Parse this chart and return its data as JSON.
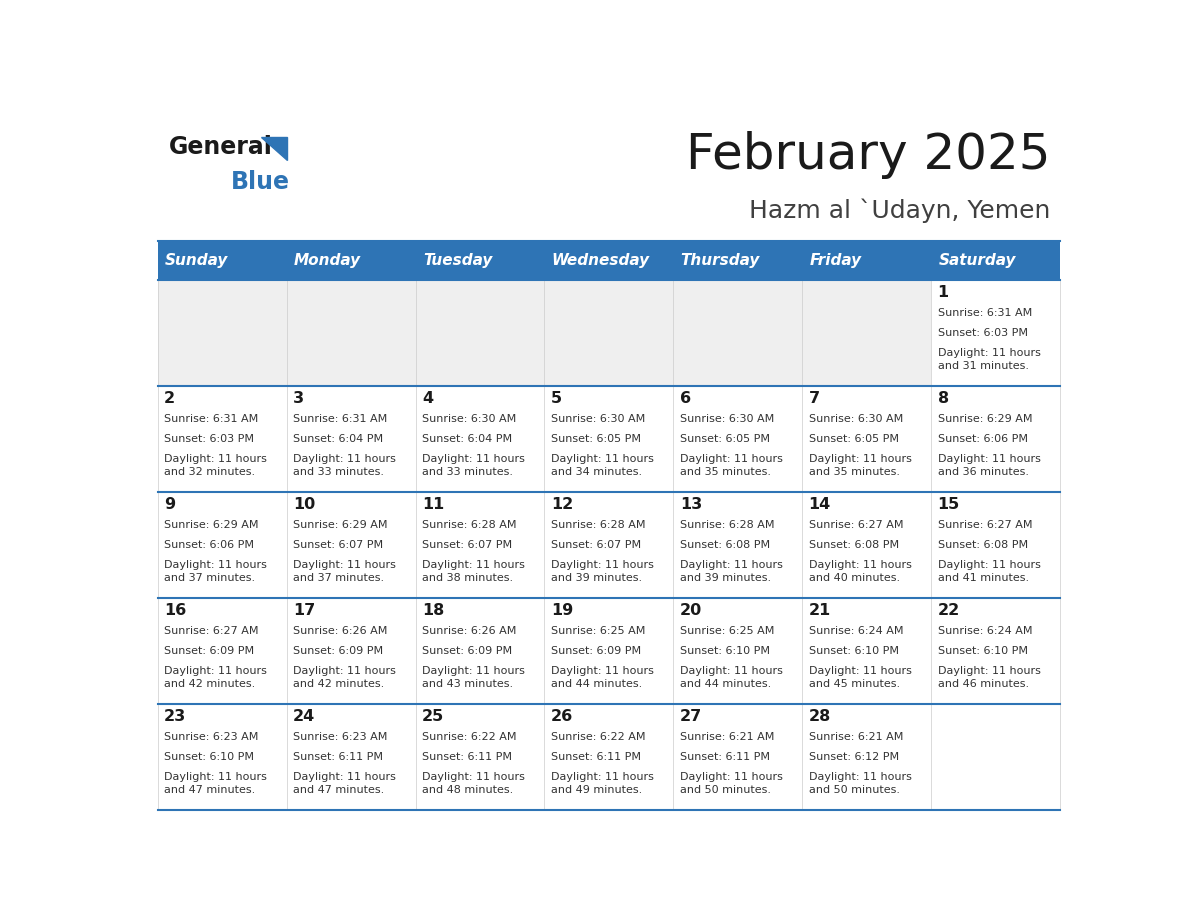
{
  "title": "February 2025",
  "subtitle": "Hazm al `Udayn, Yemen",
  "header_color": "#2E74B5",
  "header_text_color": "#FFFFFF",
  "border_color": "#2E74B5",
  "days_of_week": [
    "Sunday",
    "Monday",
    "Tuesday",
    "Wednesday",
    "Thursday",
    "Friday",
    "Saturday"
  ],
  "calendar_data": [
    [
      {
        "day": "",
        "sunrise": "",
        "sunset": "",
        "daylight": ""
      },
      {
        "day": "",
        "sunrise": "",
        "sunset": "",
        "daylight": ""
      },
      {
        "day": "",
        "sunrise": "",
        "sunset": "",
        "daylight": ""
      },
      {
        "day": "",
        "sunrise": "",
        "sunset": "",
        "daylight": ""
      },
      {
        "day": "",
        "sunrise": "",
        "sunset": "",
        "daylight": ""
      },
      {
        "day": "",
        "sunrise": "",
        "sunset": "",
        "daylight": ""
      },
      {
        "day": "1",
        "sunrise": "Sunrise: 6:31 AM",
        "sunset": "Sunset: 6:03 PM",
        "daylight": "Daylight: 11 hours\nand 31 minutes."
      }
    ],
    [
      {
        "day": "2",
        "sunrise": "Sunrise: 6:31 AM",
        "sunset": "Sunset: 6:03 PM",
        "daylight": "Daylight: 11 hours\nand 32 minutes."
      },
      {
        "day": "3",
        "sunrise": "Sunrise: 6:31 AM",
        "sunset": "Sunset: 6:04 PM",
        "daylight": "Daylight: 11 hours\nand 33 minutes."
      },
      {
        "day": "4",
        "sunrise": "Sunrise: 6:30 AM",
        "sunset": "Sunset: 6:04 PM",
        "daylight": "Daylight: 11 hours\nand 33 minutes."
      },
      {
        "day": "5",
        "sunrise": "Sunrise: 6:30 AM",
        "sunset": "Sunset: 6:05 PM",
        "daylight": "Daylight: 11 hours\nand 34 minutes."
      },
      {
        "day": "6",
        "sunrise": "Sunrise: 6:30 AM",
        "sunset": "Sunset: 6:05 PM",
        "daylight": "Daylight: 11 hours\nand 35 minutes."
      },
      {
        "day": "7",
        "sunrise": "Sunrise: 6:30 AM",
        "sunset": "Sunset: 6:05 PM",
        "daylight": "Daylight: 11 hours\nand 35 minutes."
      },
      {
        "day": "8",
        "sunrise": "Sunrise: 6:29 AM",
        "sunset": "Sunset: 6:06 PM",
        "daylight": "Daylight: 11 hours\nand 36 minutes."
      }
    ],
    [
      {
        "day": "9",
        "sunrise": "Sunrise: 6:29 AM",
        "sunset": "Sunset: 6:06 PM",
        "daylight": "Daylight: 11 hours\nand 37 minutes."
      },
      {
        "day": "10",
        "sunrise": "Sunrise: 6:29 AM",
        "sunset": "Sunset: 6:07 PM",
        "daylight": "Daylight: 11 hours\nand 37 minutes."
      },
      {
        "day": "11",
        "sunrise": "Sunrise: 6:28 AM",
        "sunset": "Sunset: 6:07 PM",
        "daylight": "Daylight: 11 hours\nand 38 minutes."
      },
      {
        "day": "12",
        "sunrise": "Sunrise: 6:28 AM",
        "sunset": "Sunset: 6:07 PM",
        "daylight": "Daylight: 11 hours\nand 39 minutes."
      },
      {
        "day": "13",
        "sunrise": "Sunrise: 6:28 AM",
        "sunset": "Sunset: 6:08 PM",
        "daylight": "Daylight: 11 hours\nand 39 minutes."
      },
      {
        "day": "14",
        "sunrise": "Sunrise: 6:27 AM",
        "sunset": "Sunset: 6:08 PM",
        "daylight": "Daylight: 11 hours\nand 40 minutes."
      },
      {
        "day": "15",
        "sunrise": "Sunrise: 6:27 AM",
        "sunset": "Sunset: 6:08 PM",
        "daylight": "Daylight: 11 hours\nand 41 minutes."
      }
    ],
    [
      {
        "day": "16",
        "sunrise": "Sunrise: 6:27 AM",
        "sunset": "Sunset: 6:09 PM",
        "daylight": "Daylight: 11 hours\nand 42 minutes."
      },
      {
        "day": "17",
        "sunrise": "Sunrise: 6:26 AM",
        "sunset": "Sunset: 6:09 PM",
        "daylight": "Daylight: 11 hours\nand 42 minutes."
      },
      {
        "day": "18",
        "sunrise": "Sunrise: 6:26 AM",
        "sunset": "Sunset: 6:09 PM",
        "daylight": "Daylight: 11 hours\nand 43 minutes."
      },
      {
        "day": "19",
        "sunrise": "Sunrise: 6:25 AM",
        "sunset": "Sunset: 6:09 PM",
        "daylight": "Daylight: 11 hours\nand 44 minutes."
      },
      {
        "day": "20",
        "sunrise": "Sunrise: 6:25 AM",
        "sunset": "Sunset: 6:10 PM",
        "daylight": "Daylight: 11 hours\nand 44 minutes."
      },
      {
        "day": "21",
        "sunrise": "Sunrise: 6:24 AM",
        "sunset": "Sunset: 6:10 PM",
        "daylight": "Daylight: 11 hours\nand 45 minutes."
      },
      {
        "day": "22",
        "sunrise": "Sunrise: 6:24 AM",
        "sunset": "Sunset: 6:10 PM",
        "daylight": "Daylight: 11 hours\nand 46 minutes."
      }
    ],
    [
      {
        "day": "23",
        "sunrise": "Sunrise: 6:23 AM",
        "sunset": "Sunset: 6:10 PM",
        "daylight": "Daylight: 11 hours\nand 47 minutes."
      },
      {
        "day": "24",
        "sunrise": "Sunrise: 6:23 AM",
        "sunset": "Sunset: 6:11 PM",
        "daylight": "Daylight: 11 hours\nand 47 minutes."
      },
      {
        "day": "25",
        "sunrise": "Sunrise: 6:22 AM",
        "sunset": "Sunset: 6:11 PM",
        "daylight": "Daylight: 11 hours\nand 48 minutes."
      },
      {
        "day": "26",
        "sunrise": "Sunrise: 6:22 AM",
        "sunset": "Sunset: 6:11 PM",
        "daylight": "Daylight: 11 hours\nand 49 minutes."
      },
      {
        "day": "27",
        "sunrise": "Sunrise: 6:21 AM",
        "sunset": "Sunset: 6:11 PM",
        "daylight": "Daylight: 11 hours\nand 50 minutes."
      },
      {
        "day": "28",
        "sunrise": "Sunrise: 6:21 AM",
        "sunset": "Sunset: 6:12 PM",
        "daylight": "Daylight: 11 hours\nand 50 minutes."
      },
      {
        "day": "",
        "sunrise": "",
        "sunset": "",
        "daylight": ""
      }
    ]
  ]
}
